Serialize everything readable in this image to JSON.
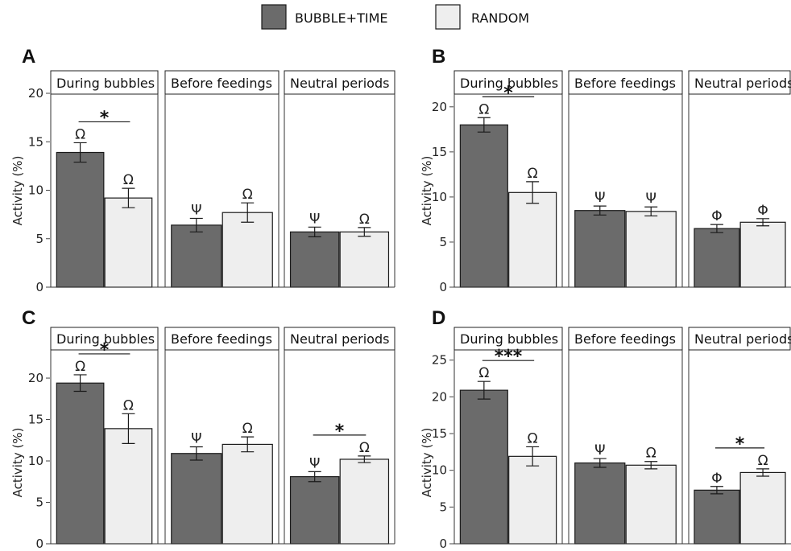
{
  "colors": {
    "bubble_time": "#6b6b6b",
    "random": "#eeeeee",
    "outline": "#1a1a1a"
  },
  "legend": [
    {
      "label": "BUBBLE+TIME",
      "color": "#6b6b6b"
    },
    {
      "label": "RANDOM",
      "color": "#eeeeee"
    }
  ],
  "chart_data": [
    {
      "panel": "A",
      "type": "bar",
      "ylabel": "Activity (%)",
      "ylim": [
        0,
        20
      ],
      "yticks": [
        0,
        5,
        10,
        15,
        20
      ],
      "facets": [
        "During bubbles",
        "Before feedings",
        "Neutral periods"
      ],
      "series": [
        {
          "name": "BUBBLE+TIME",
          "values": [
            13.9,
            6.4,
            5.7
          ],
          "errors": [
            1.0,
            0.7,
            0.5
          ],
          "symbols": [
            "Ω",
            "Ψ",
            "Ψ"
          ]
        },
        {
          "name": "RANDOM",
          "values": [
            9.2,
            7.7,
            5.7
          ],
          "errors": [
            1.0,
            1.0,
            0.45
          ],
          "symbols": [
            "Ω",
            "Ω",
            "Ω"
          ]
        }
      ],
      "significance": [
        {
          "facet": 0,
          "label": "*"
        }
      ]
    },
    {
      "panel": "B",
      "type": "bar",
      "ylabel": "Activity (%)",
      "ylim": [
        0,
        21.5
      ],
      "yticks": [
        0,
        5,
        10,
        15,
        20
      ],
      "facets": [
        "During bubbles",
        "Before feedings",
        "Neutral periods"
      ],
      "series": [
        {
          "name": "BUBBLE+TIME",
          "values": [
            18.0,
            8.5,
            6.5
          ],
          "errors": [
            0.8,
            0.5,
            0.45
          ],
          "symbols": [
            "Ω",
            "Ψ",
            "Φ"
          ]
        },
        {
          "name": "RANDOM",
          "values": [
            10.5,
            8.4,
            7.2
          ],
          "errors": [
            1.2,
            0.5,
            0.4
          ],
          "symbols": [
            "Ω",
            "Ψ",
            "Φ"
          ]
        }
      ],
      "significance": [
        {
          "facet": 0,
          "label": "*"
        }
      ]
    },
    {
      "panel": "C",
      "type": "bar",
      "ylabel": "Activity (%)",
      "ylim": [
        0,
        23.5
      ],
      "yticks": [
        0,
        5,
        10,
        15,
        20
      ],
      "facets": [
        "During bubbles",
        "Before feedings",
        "Neutral periods"
      ],
      "series": [
        {
          "name": "BUBBLE+TIME",
          "values": [
            19.4,
            10.9,
            8.1
          ],
          "errors": [
            1.0,
            0.8,
            0.6
          ],
          "symbols": [
            "Ω",
            "Ψ",
            "Ψ"
          ]
        },
        {
          "name": "RANDOM",
          "values": [
            13.9,
            12.0,
            10.2
          ],
          "errors": [
            1.8,
            0.9,
            0.4
          ],
          "symbols": [
            "Ω",
            "Ω",
            "Ω"
          ]
        }
      ],
      "significance": [
        {
          "facet": 0,
          "label": "*"
        },
        {
          "facet": 2,
          "label": "*"
        }
      ]
    },
    {
      "panel": "D",
      "type": "bar",
      "ylabel": "Activity (%)",
      "ylim": [
        0,
        26.5
      ],
      "yticks": [
        0,
        5,
        10,
        15,
        20,
        25
      ],
      "facets": [
        "During bubbles",
        "Before feedings",
        "Neutral periods"
      ],
      "series": [
        {
          "name": "BUBBLE+TIME",
          "values": [
            20.9,
            11.0,
            7.3
          ],
          "errors": [
            1.2,
            0.6,
            0.5
          ],
          "symbols": [
            "Ω",
            "Ψ",
            "Φ"
          ]
        },
        {
          "name": "RANDOM",
          "values": [
            11.9,
            10.7,
            9.7
          ],
          "errors": [
            1.3,
            0.5,
            0.5
          ],
          "symbols": [
            "Ω",
            "Ω",
            "Ω"
          ]
        }
      ],
      "significance": [
        {
          "facet": 0,
          "label": "***"
        },
        {
          "facet": 2,
          "label": "*"
        }
      ]
    }
  ]
}
